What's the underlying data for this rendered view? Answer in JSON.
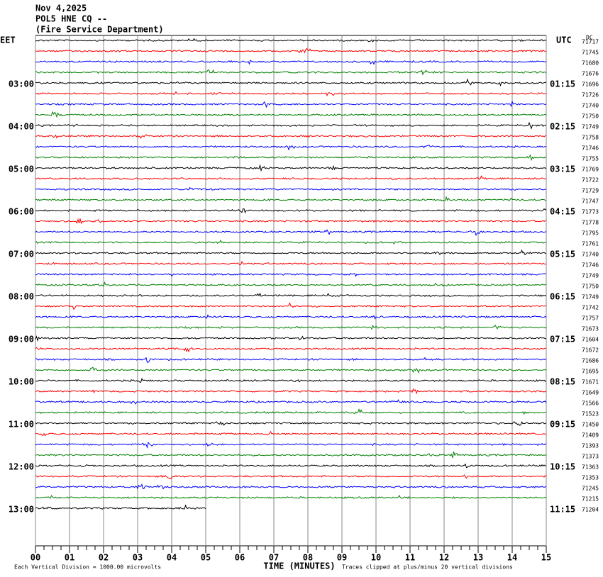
{
  "header": {
    "date": "Nov 4,2025",
    "station": "POL5 HNE CQ --",
    "agency": "(Fire Service Department)"
  },
  "chart_data": {
    "type": "helicorder",
    "left_timezone": "EET",
    "right_timezone": "UTC",
    "dc_label": "DC",
    "colors": [
      "#000000",
      "#ff0000",
      "#0000ff",
      "#008000"
    ],
    "left_labels": [
      null,
      null,
      null,
      null,
      "03:00",
      null,
      null,
      null,
      "04:00",
      null,
      null,
      null,
      "05:00",
      null,
      null,
      null,
      "06:00",
      null,
      null,
      null,
      "07:00",
      null,
      null,
      null,
      "08:00",
      null,
      null,
      null,
      "09:00",
      null,
      null,
      null,
      "10:00",
      null,
      null,
      null,
      "11:00",
      null,
      null,
      null,
      "12:00",
      null,
      null,
      null,
      "13:00"
    ],
    "right_labels": [
      null,
      null,
      null,
      null,
      "01:15",
      null,
      null,
      null,
      "02:15",
      null,
      null,
      null,
      "03:15",
      null,
      null,
      null,
      "04:15",
      null,
      null,
      null,
      "05:15",
      null,
      null,
      null,
      "06:15",
      null,
      null,
      null,
      "07:15",
      null,
      null,
      null,
      "08:15",
      null,
      null,
      null,
      "09:15",
      null,
      null,
      null,
      "10:15",
      null,
      null,
      null,
      "11:15"
    ],
    "dc_values": [
      71717,
      71745,
      71680,
      71676,
      71696,
      71726,
      71740,
      71750,
      71749,
      71758,
      71746,
      71755,
      71769,
      71722,
      71729,
      71747,
      71773,
      71778,
      71795,
      71761,
      71740,
      71746,
      71749,
      71750,
      71749,
      71742,
      71757,
      71673,
      71604,
      71672,
      71686,
      71695,
      71671,
      71649,
      71566,
      71523,
      71450,
      71409,
      71393,
      71373,
      71363,
      71353,
      71245,
      71215,
      71204
    ],
    "xlim": [
      0,
      15
    ],
    "xticks": [
      {
        "value": 0,
        "label": "00"
      },
      {
        "value": 1,
        "label": "01"
      },
      {
        "value": 2,
        "label": "02"
      },
      {
        "value": 3,
        "label": "03"
      },
      {
        "value": 4,
        "label": "04"
      },
      {
        "value": 5,
        "label": "05"
      },
      {
        "value": 6,
        "label": "06"
      },
      {
        "value": 7,
        "label": "07"
      },
      {
        "value": 8,
        "label": "08"
      },
      {
        "value": 9,
        "label": "09"
      },
      {
        "value": 10,
        "label": "10"
      },
      {
        "value": 11,
        "label": "11"
      },
      {
        "value": 12,
        "label": "12"
      },
      {
        "value": 13,
        "label": "13"
      },
      {
        "value": 14,
        "label": "14"
      },
      {
        "value": 15,
        "label": "15"
      }
    ],
    "x_label": "TIME (MINUTES)",
    "scale_note": "Each Vertical Division = 1000.00 microvolts",
    "clip_note": "Traces clipped at plus/minus 20 vertical divisions"
  }
}
